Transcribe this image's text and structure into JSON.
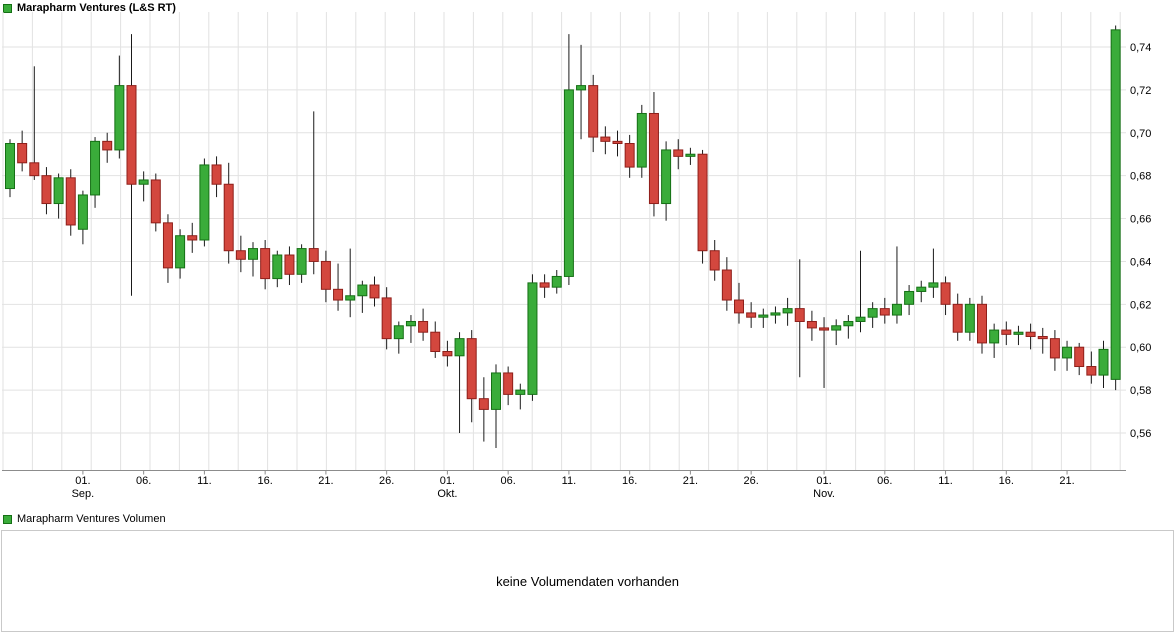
{
  "legend_top": {
    "label": "Marapharm Ventures (L&S RT)"
  },
  "legend_volume": {
    "label": "Marapharm Ventures Volumen"
  },
  "volume_panel": {
    "message": "keine Volumendaten vorhanden"
  },
  "colors": {
    "up_fill": "#3aac3a",
    "up_stroke": "#157015",
    "down_fill": "#d3473e",
    "down_stroke": "#8f1f1a",
    "wick": "#1a1a1a",
    "grid": "#e2e2e2",
    "axis": "#8c8c8c",
    "text": "#000000",
    "panel_border": "#c9c9c9"
  },
  "chart_data": {
    "type": "candlestick",
    "title": "Marapharm Ventures (L&S RT)",
    "xlabel": "",
    "ylabel": "",
    "ylim": [
      0.55,
      0.755
    ],
    "grid": true,
    "legend_position": "top-left",
    "y_ticks": [
      {
        "v": 0.74,
        "l": "0,74"
      },
      {
        "v": 0.72,
        "l": "0,72"
      },
      {
        "v": 0.7,
        "l": "0,70"
      },
      {
        "v": 0.68,
        "l": "0,68"
      },
      {
        "v": 0.66,
        "l": "0,66"
      },
      {
        "v": 0.64,
        "l": "0,64"
      },
      {
        "v": 0.62,
        "l": "0,62"
      },
      {
        "v": 0.6,
        "l": "0,60"
      },
      {
        "v": 0.58,
        "l": "0,58"
      },
      {
        "v": 0.56,
        "l": "0,56"
      }
    ],
    "x_ticks": [
      {
        "i": 6,
        "l": "01.",
        "sub": "Sep."
      },
      {
        "i": 11,
        "l": "06."
      },
      {
        "i": 16,
        "l": "11."
      },
      {
        "i": 21,
        "l": "16."
      },
      {
        "i": 26,
        "l": "21."
      },
      {
        "i": 31,
        "l": "26."
      },
      {
        "i": 36,
        "l": "01.",
        "sub": "Okt."
      },
      {
        "i": 41,
        "l": "06."
      },
      {
        "i": 46,
        "l": "11."
      },
      {
        "i": 51,
        "l": "16."
      },
      {
        "i": 56,
        "l": "21."
      },
      {
        "i": 61,
        "l": "26."
      },
      {
        "i": 67,
        "l": "01.",
        "sub": "Nov."
      },
      {
        "i": 72,
        "l": "06."
      },
      {
        "i": 77,
        "l": "11."
      },
      {
        "i": 82,
        "l": "16."
      },
      {
        "i": 87,
        "l": "21."
      }
    ],
    "candles": [
      [
        0.674,
        0.697,
        0.67,
        0.695
      ],
      [
        0.695,
        0.701,
        0.682,
        0.686
      ],
      [
        0.686,
        0.731,
        0.678,
        0.68
      ],
      [
        0.68,
        0.684,
        0.662,
        0.667
      ],
      [
        0.667,
        0.681,
        0.66,
        0.679
      ],
      [
        0.679,
        0.683,
        0.652,
        0.657
      ],
      [
        0.655,
        0.673,
        0.648,
        0.671
      ],
      [
        0.671,
        0.698,
        0.665,
        0.696
      ],
      [
        0.696,
        0.7,
        0.686,
        0.692
      ],
      [
        0.692,
        0.736,
        0.688,
        0.722
      ],
      [
        0.722,
        0.746,
        0.624,
        0.676
      ],
      [
        0.676,
        0.682,
        0.668,
        0.678
      ],
      [
        0.678,
        0.681,
        0.654,
        0.658
      ],
      [
        0.658,
        0.662,
        0.63,
        0.637
      ],
      [
        0.637,
        0.655,
        0.632,
        0.652
      ],
      [
        0.652,
        0.658,
        0.644,
        0.65
      ],
      [
        0.65,
        0.688,
        0.647,
        0.685
      ],
      [
        0.685,
        0.689,
        0.67,
        0.676
      ],
      [
        0.676,
        0.686,
        0.639,
        0.645
      ],
      [
        0.645,
        0.652,
        0.635,
        0.641
      ],
      [
        0.641,
        0.649,
        0.633,
        0.646
      ],
      [
        0.646,
        0.65,
        0.627,
        0.632
      ],
      [
        0.632,
        0.645,
        0.628,
        0.643
      ],
      [
        0.643,
        0.647,
        0.629,
        0.634
      ],
      [
        0.634,
        0.648,
        0.63,
        0.646
      ],
      [
        0.646,
        0.71,
        0.634,
        0.64
      ],
      [
        0.64,
        0.645,
        0.621,
        0.627
      ],
      [
        0.627,
        0.639,
        0.617,
        0.622
      ],
      [
        0.622,
        0.646,
        0.614,
        0.624
      ],
      [
        0.624,
        0.631,
        0.616,
        0.629
      ],
      [
        0.629,
        0.633,
        0.619,
        0.623
      ],
      [
        0.623,
        0.628,
        0.599,
        0.604
      ],
      [
        0.604,
        0.612,
        0.597,
        0.61
      ],
      [
        0.61,
        0.615,
        0.602,
        0.612
      ],
      [
        0.612,
        0.618,
        0.603,
        0.607
      ],
      [
        0.607,
        0.612,
        0.595,
        0.598
      ],
      [
        0.598,
        0.603,
        0.591,
        0.596
      ],
      [
        0.596,
        0.607,
        0.56,
        0.604
      ],
      [
        0.604,
        0.608,
        0.565,
        0.576
      ],
      [
        0.576,
        0.586,
        0.556,
        0.571
      ],
      [
        0.571,
        0.592,
        0.553,
        0.588
      ],
      [
        0.588,
        0.591,
        0.573,
        0.578
      ],
      [
        0.578,
        0.583,
        0.571,
        0.58
      ],
      [
        0.578,
        0.634,
        0.575,
        0.63
      ],
      [
        0.63,
        0.634,
        0.623,
        0.628
      ],
      [
        0.628,
        0.636,
        0.625,
        0.633
      ],
      [
        0.633,
        0.746,
        0.629,
        0.72
      ],
      [
        0.72,
        0.741,
        0.697,
        0.722
      ],
      [
        0.722,
        0.727,
        0.691,
        0.698
      ],
      [
        0.698,
        0.703,
        0.69,
        0.696
      ],
      [
        0.696,
        0.701,
        0.689,
        0.695
      ],
      [
        0.695,
        0.699,
        0.679,
        0.684
      ],
      [
        0.684,
        0.713,
        0.679,
        0.709
      ],
      [
        0.709,
        0.719,
        0.661,
        0.667
      ],
      [
        0.667,
        0.696,
        0.659,
        0.692
      ],
      [
        0.692,
        0.697,
        0.683,
        0.689
      ],
      [
        0.689,
        0.693,
        0.685,
        0.69
      ],
      [
        0.69,
        0.692,
        0.639,
        0.645
      ],
      [
        0.645,
        0.65,
        0.631,
        0.636
      ],
      [
        0.636,
        0.642,
        0.617,
        0.622
      ],
      [
        0.622,
        0.63,
        0.611,
        0.616
      ],
      [
        0.616,
        0.621,
        0.609,
        0.614
      ],
      [
        0.614,
        0.618,
        0.609,
        0.615
      ],
      [
        0.615,
        0.619,
        0.611,
        0.616
      ],
      [
        0.616,
        0.623,
        0.61,
        0.618
      ],
      [
        0.618,
        0.641,
        0.586,
        0.612
      ],
      [
        0.612,
        0.617,
        0.603,
        0.609
      ],
      [
        0.609,
        0.614,
        0.581,
        0.608
      ],
      [
        0.608,
        0.613,
        0.601,
        0.61
      ],
      [
        0.61,
        0.615,
        0.604,
        0.612
      ],
      [
        0.612,
        0.645,
        0.607,
        0.614
      ],
      [
        0.614,
        0.621,
        0.609,
        0.618
      ],
      [
        0.618,
        0.623,
        0.611,
        0.615
      ],
      [
        0.615,
        0.647,
        0.611,
        0.62
      ],
      [
        0.62,
        0.629,
        0.615,
        0.626
      ],
      [
        0.626,
        0.631,
        0.621,
        0.628
      ],
      [
        0.628,
        0.646,
        0.623,
        0.63
      ],
      [
        0.63,
        0.633,
        0.615,
        0.62
      ],
      [
        0.62,
        0.625,
        0.603,
        0.607
      ],
      [
        0.607,
        0.623,
        0.603,
        0.62
      ],
      [
        0.62,
        0.624,
        0.597,
        0.602
      ],
      [
        0.602,
        0.611,
        0.595,
        0.608
      ],
      [
        0.608,
        0.612,
        0.601,
        0.606
      ],
      [
        0.606,
        0.61,
        0.601,
        0.607
      ],
      [
        0.607,
        0.611,
        0.599,
        0.605
      ],
      [
        0.605,
        0.609,
        0.597,
        0.604
      ],
      [
        0.604,
        0.608,
        0.589,
        0.595
      ],
      [
        0.595,
        0.603,
        0.589,
        0.6
      ],
      [
        0.6,
        0.602,
        0.587,
        0.591
      ],
      [
        0.591,
        0.598,
        0.583,
        0.587
      ],
      [
        0.587,
        0.603,
        0.581,
        0.599
      ],
      [
        0.585,
        0.75,
        0.58,
        0.748
      ]
    ]
  }
}
